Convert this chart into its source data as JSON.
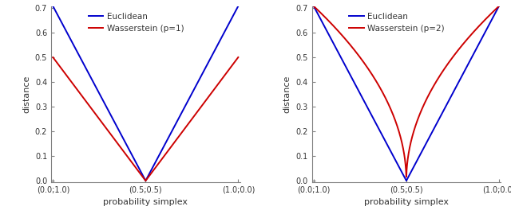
{
  "xlabel": "probability simplex",
  "ylabel": "distance",
  "ylim": [
    0.0,
    0.7
  ],
  "yticks": [
    0.0,
    0.1,
    0.2,
    0.3,
    0.4,
    0.5,
    0.6,
    0.7
  ],
  "xtick_labels": [
    "(0.0;1.0)",
    "(0.5;0.5)",
    "(1.0;0.0)"
  ],
  "xtick_positions": [
    0.0,
    0.5,
    1.0
  ],
  "euclidean_color": "#0000cd",
  "wasserstein_color": "#cd0000",
  "legend_euclidean": "Euclidean",
  "legend_wasserstein_p1": "Wasserstein (p=1)",
  "legend_wasserstein_p2": "Wasserstein (p=2)",
  "background_color": "#ffffff",
  "linewidth": 1.4,
  "axis_color": "#808080",
  "text_color": "#333333",
  "tick_fontsize": 7.0,
  "label_fontsize": 8.0,
  "legend_fontsize": 7.5
}
